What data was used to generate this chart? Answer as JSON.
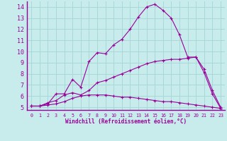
{
  "xlabel": "Windchill (Refroidissement éolien,°C)",
  "background_color": "#c8ecec",
  "grid_color": "#a8d8d8",
  "line_color": "#990099",
  "xlim": [
    -0.5,
    23.5
  ],
  "ylim": [
    4.75,
    14.5
  ],
  "xticks": [
    0,
    1,
    2,
    3,
    4,
    5,
    6,
    7,
    8,
    9,
    10,
    11,
    12,
    13,
    14,
    15,
    16,
    17,
    18,
    19,
    20,
    21,
    22,
    23
  ],
  "yticks": [
    5,
    6,
    7,
    8,
    9,
    10,
    11,
    12,
    13,
    14
  ],
  "x_all": [
    0,
    1,
    2,
    3,
    4,
    5,
    6,
    7,
    8,
    9,
    10,
    11,
    12,
    13,
    14,
    15,
    16,
    17,
    18,
    19,
    20,
    21,
    22,
    23
  ],
  "line1_y": [
    5.1,
    5.1,
    5.3,
    6.2,
    6.2,
    7.5,
    6.8,
    9.1,
    9.9,
    9.8,
    10.6,
    11.1,
    12.0,
    13.1,
    14.0,
    14.25,
    13.7,
    13.0,
    11.5,
    9.5,
    9.5,
    8.1,
    6.2,
    4.9
  ],
  "line2_y": [
    5.1,
    5.1,
    5.4,
    5.6,
    6.1,
    6.3,
    6.1,
    6.5,
    7.2,
    7.4,
    7.7,
    8.0,
    8.3,
    8.6,
    8.9,
    9.1,
    9.2,
    9.3,
    9.3,
    9.4,
    9.5,
    8.4,
    6.5,
    5.0
  ],
  "line3_y": [
    5.1,
    5.1,
    5.2,
    5.3,
    5.5,
    5.8,
    6.0,
    6.1,
    6.1,
    6.1,
    6.0,
    5.9,
    5.9,
    5.8,
    5.7,
    5.6,
    5.5,
    5.5,
    5.4,
    5.3,
    5.2,
    5.1,
    5.0,
    4.9
  ],
  "xlabel_fontsize": 5.5,
  "ytick_fontsize": 6.0,
  "xtick_fontsize": 4.8
}
